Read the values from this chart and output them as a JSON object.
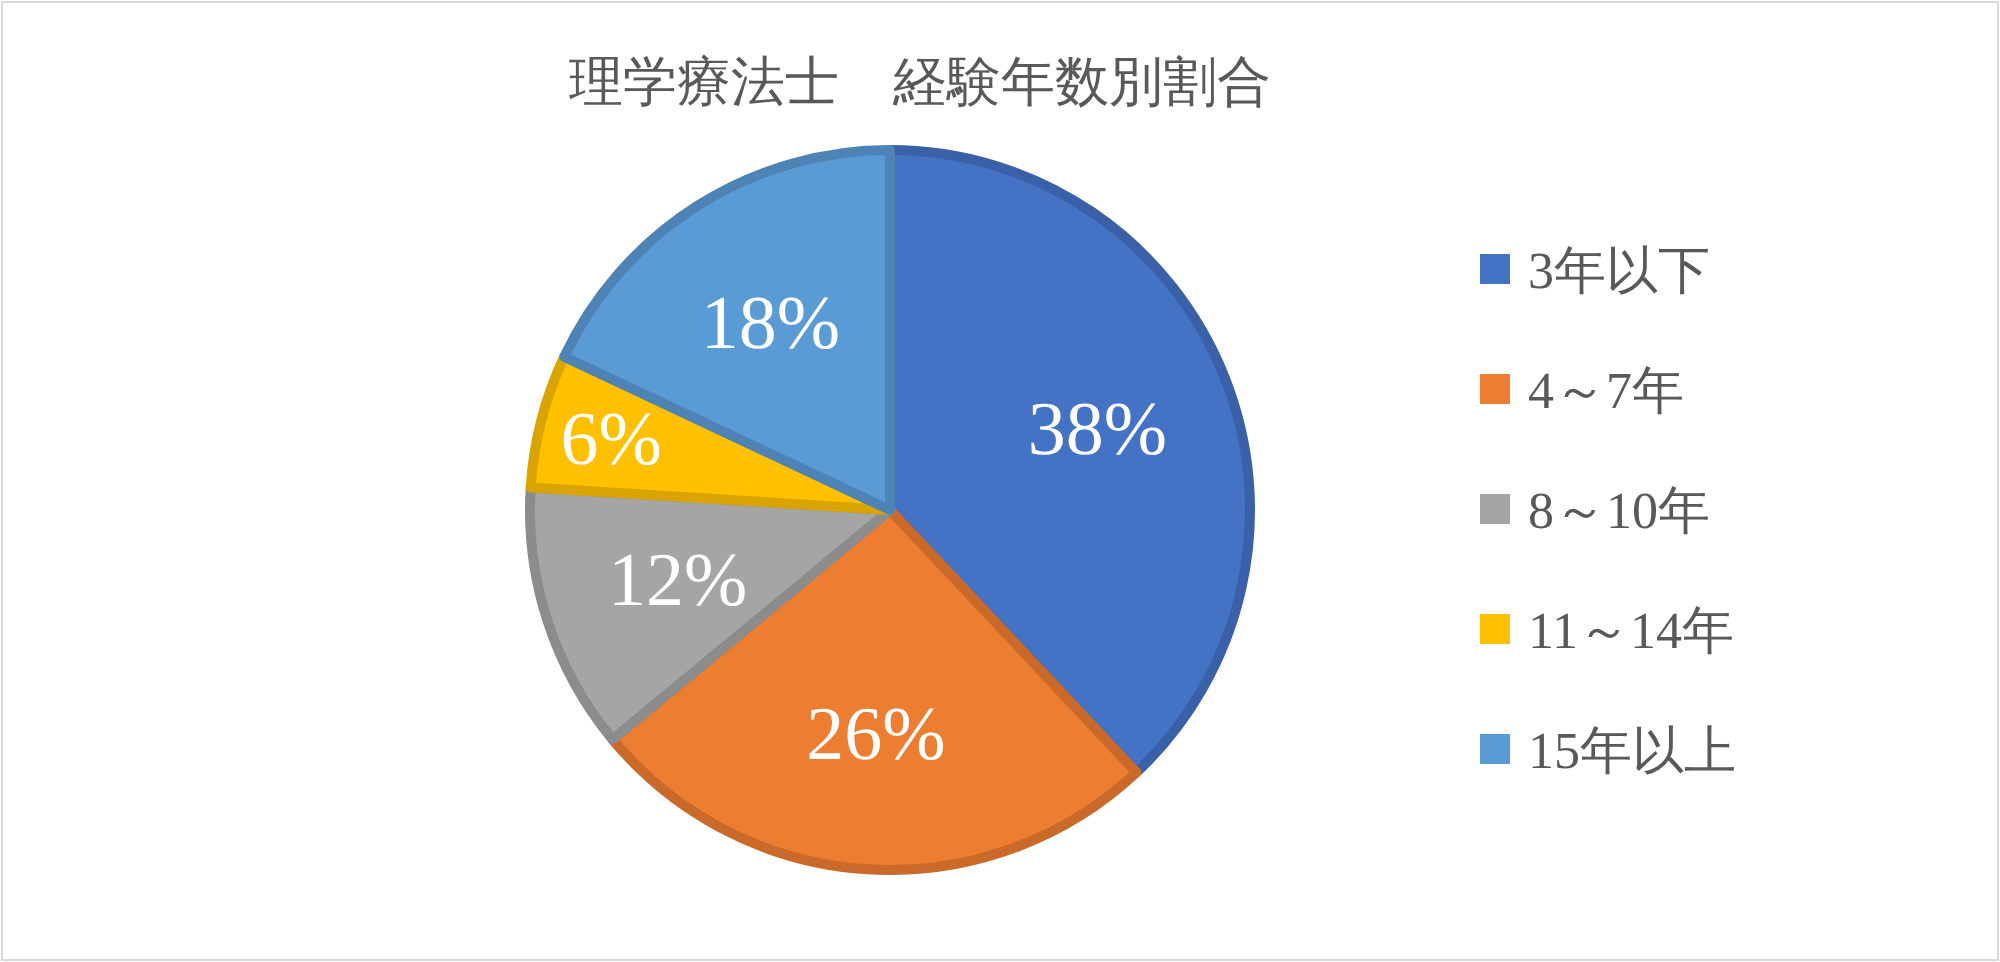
{
  "chart_data": {
    "type": "pie",
    "title": "理学療法士　経験年数別割合",
    "categories": [
      "3年以下",
      "4～7年",
      "8～10年",
      "11～14年",
      "15年以上"
    ],
    "values": [
      38,
      26,
      12,
      6,
      18
    ],
    "value_labels": [
      "38%",
      "26%",
      "12%",
      "6%",
      "18%"
    ],
    "colors": [
      "#4472c4",
      "#ed7d31",
      "#a5a5a5",
      "#ffc000",
      "#5b9bd5"
    ],
    "legend": "right"
  }
}
